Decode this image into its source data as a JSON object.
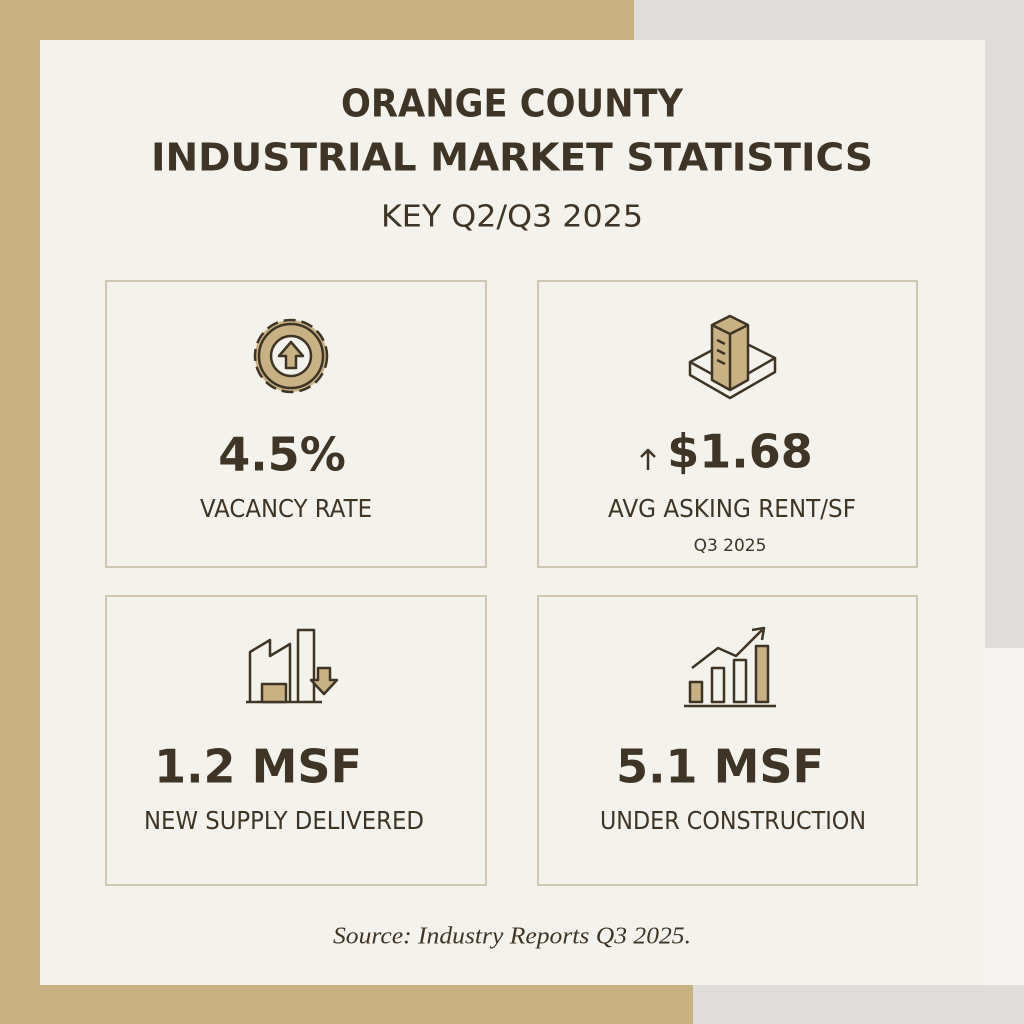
{
  "header": {
    "title_lines": [
      "ORANGE COUNTY",
      "INDUSTRIAL MARKET STATISTICS"
    ],
    "subtitle": "KEY Q2/Q3 2025"
  },
  "cards": [
    {
      "value": "4.5%",
      "label": "VACANCY RATE"
    },
    {
      "value": "$1.68",
      "label": "AVG ASKING RENT/SF",
      "note": "Q3 2025"
    },
    {
      "value": "1.2 MSF",
      "label": "NEW SUPPLY DELIVERED"
    },
    {
      "value": "5.1 MSF",
      "label": "UNDER CONSTRUCTION"
    }
  ],
  "footer": {
    "source": "Source: Industry Reports Q3 2025."
  }
}
